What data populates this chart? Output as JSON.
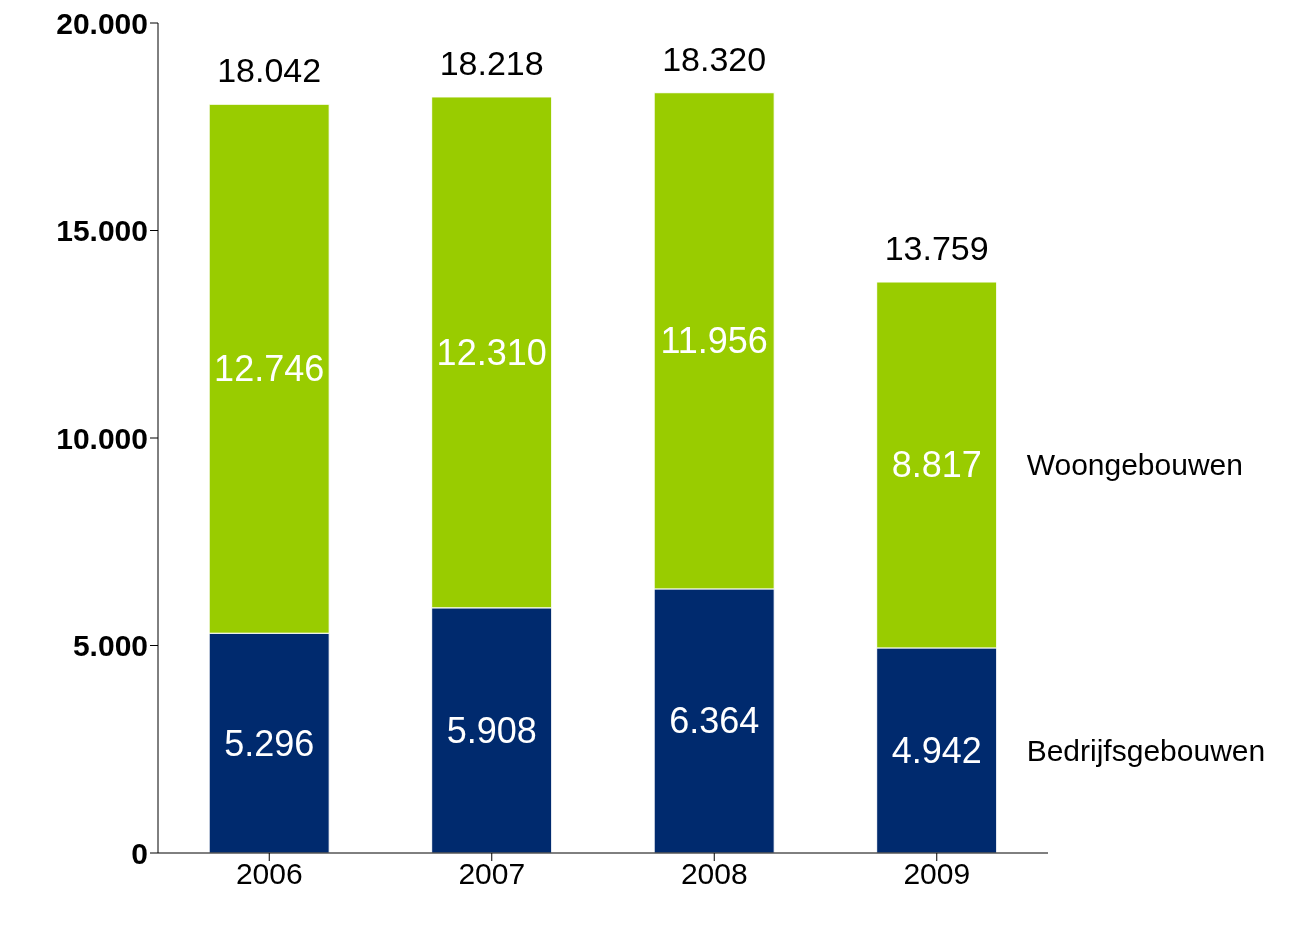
{
  "chart_data": {
    "type": "bar",
    "stacked": true,
    "categories": [
      "2006",
      "2007",
      "2008",
      "2009"
    ],
    "series": [
      {
        "name": "Bedrijfsgebouwen",
        "color": "#002a6e",
        "values": [
          5296,
          5908,
          6364,
          4942
        ],
        "value_labels": [
          "5.296",
          "5.908",
          "6.364",
          "4.942"
        ]
      },
      {
        "name": "Woongebouwen",
        "color": "#99cc00",
        "values": [
          12746,
          12310,
          11956,
          8817
        ],
        "value_labels": [
          "12.746",
          "12.310",
          "11.956",
          "8.817"
        ]
      }
    ],
    "totals": [
      "18.042",
      "18.218",
      "18.320",
      "13.759"
    ],
    "ylim": [
      0,
      20000
    ],
    "yticks": [
      {
        "value": 0,
        "label": "0"
      },
      {
        "value": 5000,
        "label": "5.000"
      },
      {
        "value": 10000,
        "label": "10.000"
      },
      {
        "value": 15000,
        "label": "15.000"
      },
      {
        "value": 20000,
        "label": "20.000"
      }
    ],
    "grid": false
  }
}
